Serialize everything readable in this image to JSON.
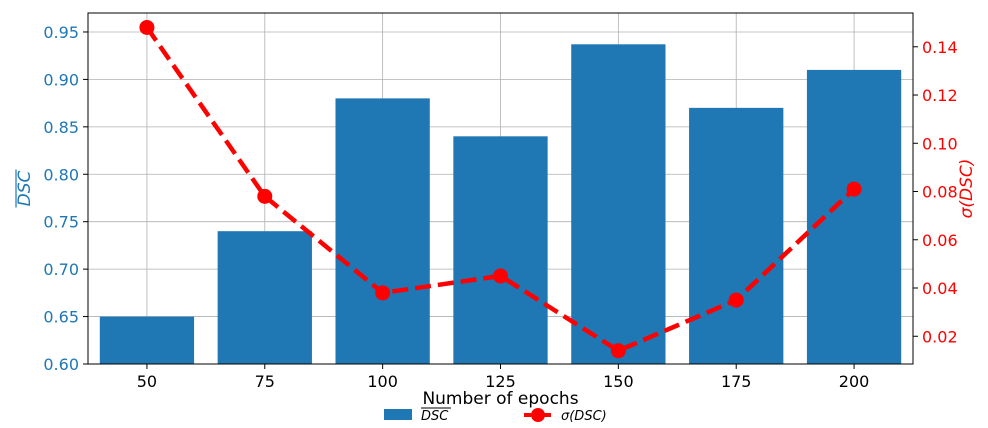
{
  "chart_data": {
    "type": "bar+line",
    "categories": [
      "50",
      "75",
      "100",
      "125",
      "150",
      "175",
      "200"
    ],
    "series": [
      {
        "name": "DSC (mean)",
        "type": "bar",
        "axis": "left",
        "color": "#1f77b4",
        "values": [
          0.65,
          0.74,
          0.88,
          0.84,
          0.937,
          0.87,
          0.91
        ]
      },
      {
        "name": "σ(DSC)",
        "type": "line",
        "axis": "right",
        "color": "#ff0000",
        "line_style": "dashed",
        "marker": "circle",
        "values": [
          0.148,
          0.078,
          0.038,
          0.045,
          0.014,
          0.035,
          0.081
        ]
      }
    ],
    "xlabel": "Number of epochs",
    "ylabel_left": "DSC",
    "ylabel_left_overline": true,
    "ylabel_right": "σ(DSC)",
    "ylim_left": [
      0.6,
      0.97
    ],
    "ylim_right": [
      0.0085,
      0.154
    ],
    "yticks_left": [
      "0.60",
      "0.65",
      "0.70",
      "0.75",
      "0.80",
      "0.85",
      "0.90",
      "0.95"
    ],
    "yticks_right": [
      "0.02",
      "0.04",
      "0.06",
      "0.08",
      "0.10",
      "0.12",
      "0.14"
    ],
    "grid": true,
    "legend_position": "bottom-center",
    "legend": [
      {
        "label": "DSC",
        "overline": true,
        "kind": "bar"
      },
      {
        "label": "σ(DSC)",
        "kind": "line"
      }
    ]
  }
}
